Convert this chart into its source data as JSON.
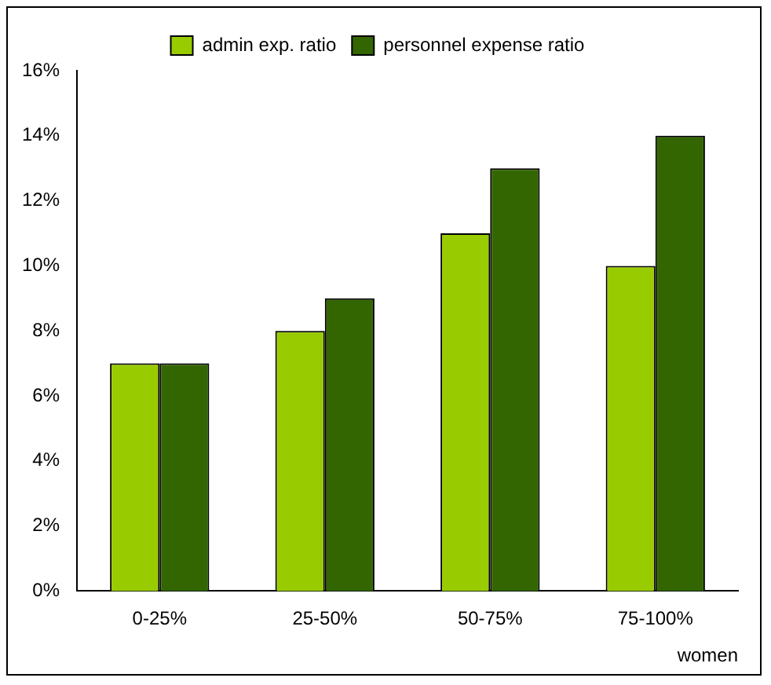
{
  "chart_data": {
    "type": "bar",
    "xlabel": "women",
    "categories": [
      "0-25%",
      "25-50%",
      "50-75%",
      "75-100%"
    ],
    "series": [
      {
        "name": "admin exp. ratio",
        "color": "#99cc00",
        "values": [
          7,
          8,
          11,
          10
        ]
      },
      {
        "name": "personnel expense ratio",
        "color": "#336600",
        "values": [
          7,
          9,
          13,
          14
        ]
      }
    ],
    "ylim": [
      0,
      16
    ],
    "yticks": [
      {
        "value": 0,
        "label": "0%"
      },
      {
        "value": 2,
        "label": "2%"
      },
      {
        "value": 4,
        "label": "4%"
      },
      {
        "value": 6,
        "label": "6%"
      },
      {
        "value": 8,
        "label": "8%"
      },
      {
        "value": 10,
        "label": "10%"
      },
      {
        "value": 12,
        "label": "12%"
      },
      {
        "value": 14,
        "label": "14%"
      },
      {
        "value": 16,
        "label": "16%"
      }
    ],
    "legend": "top"
  }
}
